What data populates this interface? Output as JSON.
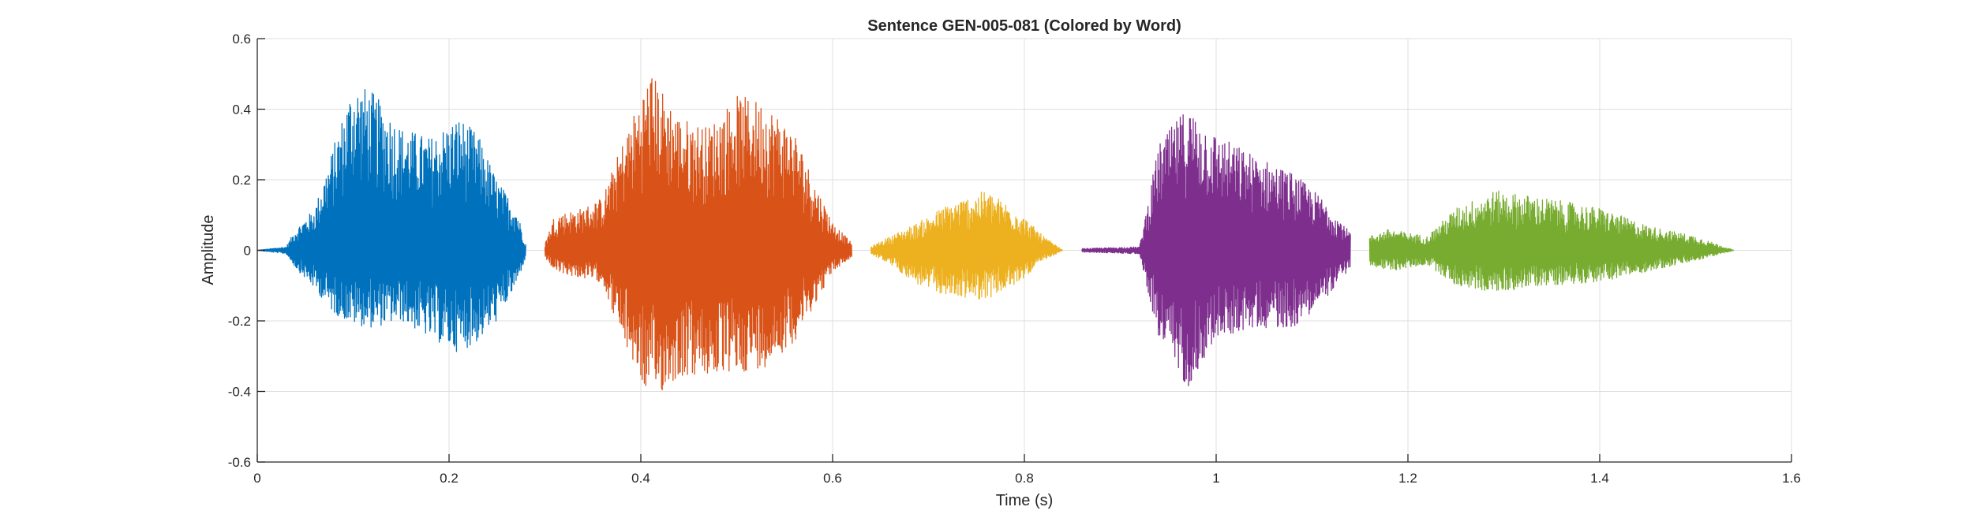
{
  "chart_data": {
    "type": "line",
    "title": "Sentence GEN-005-081 (Colored by Word)",
    "xlabel": "Time (s)",
    "ylabel": "Amplitude",
    "xlim": [
      0,
      1.6
    ],
    "ylim": [
      -0.6,
      0.6
    ],
    "xticks": [
      0,
      0.2,
      0.4,
      0.6,
      0.8,
      1,
      1.2,
      1.4,
      1.6
    ],
    "xtick_labels": [
      "0",
      "0.2",
      "0.4",
      "0.6",
      "0.8",
      "1",
      "1.2",
      "1.4",
      "1.6"
    ],
    "yticks": [
      0.6,
      0.4,
      0.2,
      0,
      -0.2,
      -0.4,
      -0.6
    ],
    "ytick_labels": [
      "0.6",
      "0.4",
      "0.2",
      "0",
      "-0.2",
      "-0.4",
      "-0.6"
    ],
    "grid": true,
    "series": [
      {
        "color": "#0072BD",
        "x_range": [
          0,
          0.28
        ],
        "envelope": [
          {
            "t": 0.0,
            "pos": 0.0,
            "neg": 0.0
          },
          {
            "t": 0.03,
            "pos": 0.01,
            "neg": -0.01
          },
          {
            "t": 0.04,
            "pos": 0.06,
            "neg": -0.05
          },
          {
            "t": 0.06,
            "pos": 0.12,
            "neg": -0.11
          },
          {
            "t": 0.08,
            "pos": 0.3,
            "neg": -0.18
          },
          {
            "t": 0.1,
            "pos": 0.48,
            "neg": -0.21
          },
          {
            "t": 0.12,
            "pos": 0.45,
            "neg": -0.22
          },
          {
            "t": 0.15,
            "pos": 0.35,
            "neg": -0.2
          },
          {
            "t": 0.18,
            "pos": 0.32,
            "neg": -0.25
          },
          {
            "t": 0.21,
            "pos": 0.38,
            "neg": -0.29
          },
          {
            "t": 0.23,
            "pos": 0.33,
            "neg": -0.26
          },
          {
            "t": 0.25,
            "pos": 0.2,
            "neg": -0.2
          },
          {
            "t": 0.27,
            "pos": 0.12,
            "neg": -0.1
          },
          {
            "t": 0.28,
            "pos": 0.02,
            "neg": -0.02
          }
        ]
      },
      {
        "color": "#D95319",
        "x_range": [
          0.3,
          0.62
        ],
        "envelope": [
          {
            "t": 0.3,
            "pos": 0.02,
            "neg": -0.02
          },
          {
            "t": 0.31,
            "pos": 0.1,
            "neg": -0.06
          },
          {
            "t": 0.34,
            "pos": 0.12,
            "neg": -0.08
          },
          {
            "t": 0.36,
            "pos": 0.15,
            "neg": -0.09
          },
          {
            "t": 0.38,
            "pos": 0.3,
            "neg": -0.25
          },
          {
            "t": 0.41,
            "pos": 0.51,
            "neg": -0.43
          },
          {
            "t": 0.44,
            "pos": 0.38,
            "neg": -0.36
          },
          {
            "t": 0.47,
            "pos": 0.35,
            "neg": -0.36
          },
          {
            "t": 0.5,
            "pos": 0.44,
            "neg": -0.35
          },
          {
            "t": 0.53,
            "pos": 0.42,
            "neg": -0.33
          },
          {
            "t": 0.56,
            "pos": 0.34,
            "neg": -0.26
          },
          {
            "t": 0.58,
            "pos": 0.2,
            "neg": -0.16
          },
          {
            "t": 0.6,
            "pos": 0.08,
            "neg": -0.06
          },
          {
            "t": 0.62,
            "pos": 0.02,
            "neg": -0.02
          }
        ]
      },
      {
        "color": "#EDB120",
        "x_range": [
          0.64,
          0.84
        ],
        "envelope": [
          {
            "t": 0.64,
            "pos": 0.01,
            "neg": -0.01
          },
          {
            "t": 0.66,
            "pos": 0.04,
            "neg": -0.04
          },
          {
            "t": 0.69,
            "pos": 0.08,
            "neg": -0.1
          },
          {
            "t": 0.72,
            "pos": 0.13,
            "neg": -0.13
          },
          {
            "t": 0.76,
            "pos": 0.17,
            "neg": -0.14
          },
          {
            "t": 0.79,
            "pos": 0.12,
            "neg": -0.1
          },
          {
            "t": 0.82,
            "pos": 0.04,
            "neg": -0.03
          },
          {
            "t": 0.84,
            "pos": 0.0,
            "neg": 0.0
          }
        ]
      },
      {
        "color": "#7E2F8E",
        "x_range": [
          0.86,
          1.14
        ],
        "envelope": [
          {
            "t": 0.86,
            "pos": 0.005,
            "neg": -0.005
          },
          {
            "t": 0.92,
            "pos": 0.01,
            "neg": -0.01
          },
          {
            "t": 0.94,
            "pos": 0.3,
            "neg": -0.25
          },
          {
            "t": 0.97,
            "pos": 0.41,
            "neg": -0.39
          },
          {
            "t": 1.0,
            "pos": 0.33,
            "neg": -0.25
          },
          {
            "t": 1.04,
            "pos": 0.27,
            "neg": -0.22
          },
          {
            "t": 1.08,
            "pos": 0.22,
            "neg": -0.22
          },
          {
            "t": 1.11,
            "pos": 0.15,
            "neg": -0.15
          },
          {
            "t": 1.14,
            "pos": 0.05,
            "neg": -0.05
          }
        ]
      },
      {
        "color": "#77AC30",
        "x_range": [
          1.16,
          1.54
        ],
        "envelope": [
          {
            "t": 1.16,
            "pos": 0.04,
            "neg": -0.04
          },
          {
            "t": 1.18,
            "pos": 0.06,
            "neg": -0.06
          },
          {
            "t": 1.22,
            "pos": 0.04,
            "neg": -0.04
          },
          {
            "t": 1.25,
            "pos": 0.12,
            "neg": -0.1
          },
          {
            "t": 1.29,
            "pos": 0.17,
            "neg": -0.12
          },
          {
            "t": 1.34,
            "pos": 0.15,
            "neg": -0.1
          },
          {
            "t": 1.4,
            "pos": 0.12,
            "neg": -0.09
          },
          {
            "t": 1.45,
            "pos": 0.07,
            "neg": -0.06
          },
          {
            "t": 1.5,
            "pos": 0.04,
            "neg": -0.03
          },
          {
            "t": 1.54,
            "pos": 0.0,
            "neg": 0.0
          }
        ]
      }
    ]
  }
}
